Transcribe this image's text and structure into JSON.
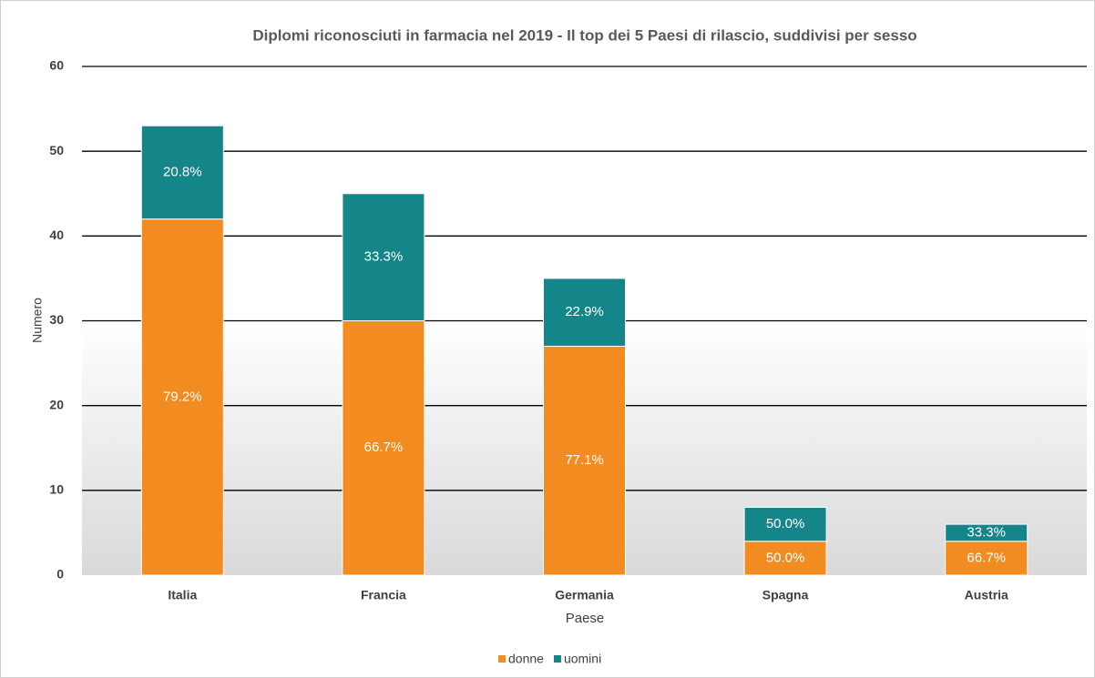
{
  "chart_data": {
    "type": "stacked_bar",
    "title": "Diplomi riconosciuti in farmacia nel 2019 - Il top dei 5 Paesi di rilascio, suddivisi per sesso",
    "x_label": "Paese",
    "y_label": "Numero",
    "categories": [
      "Italia",
      "Francia",
      "Germania",
      "Spagna",
      "Austria"
    ],
    "series": [
      {
        "name": "donne",
        "color": "#f28c20",
        "values": [
          42,
          30,
          27,
          4,
          4
        ],
        "share_labels": [
          "79.2%",
          "66.7%",
          "77.1%",
          "50.0%",
          "66.7%"
        ]
      },
      {
        "name": "uomini",
        "color": "#14868a",
        "values": [
          11,
          15,
          8,
          4,
          2
        ],
        "share_labels": [
          "20.8%",
          "33.3%",
          "22.9%",
          "50.0%",
          "33.3%"
        ]
      }
    ],
    "ylim": [
      0,
      60
    ],
    "yticks": [
      0,
      10,
      20,
      30,
      40,
      50,
      60
    ],
    "grid": true,
    "legend": "bottom"
  }
}
